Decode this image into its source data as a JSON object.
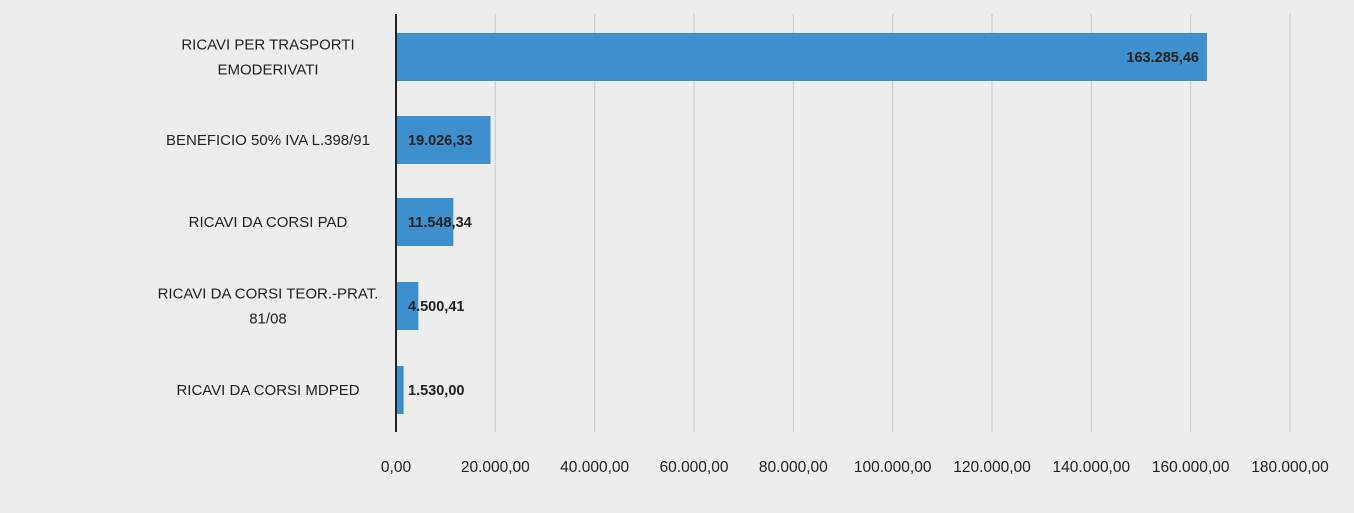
{
  "colors": {
    "background": "#e7e7e7",
    "plot_background": "#f4f4f4",
    "bar": "#3d8fce",
    "gridline": "#cfcfcf",
    "axis": "#222222",
    "text": "#222222"
  },
  "chart_data": {
    "type": "bar",
    "orientation": "horizontal",
    "title": "",
    "xlabel": "",
    "ylabel": "",
    "xlim": [
      0,
      180000
    ],
    "grid": true,
    "legend": "none",
    "x_ticks": [
      0,
      20000,
      40000,
      60000,
      80000,
      100000,
      120000,
      140000,
      160000,
      180000
    ],
    "x_tick_labels": [
      "0,00",
      "20.000,00",
      "40.000,00",
      "60.000,00",
      "80.000,00",
      "100.000,00",
      "120.000,00",
      "140.000,00",
      "160.000,00",
      "180.000,00"
    ],
    "categories": [
      [
        "RICAVI PER TRASPORTI",
        "EMODERIVATI"
      ],
      [
        "BENEFICIO 50% IVA L.398/91"
      ],
      [
        "RICAVI DA CORSI PAD"
      ],
      [
        "RICAVI DA CORSI TEOR.-PRAT.",
        "81/08"
      ],
      [
        "RICAVI DA CORSI MDPED"
      ]
    ],
    "values": [
      163285.46,
      19026.33,
      11548.34,
      4500.41,
      1530.0
    ],
    "data_labels": [
      "163.285,46",
      "19.026,33",
      "11.548,34",
      "4.500,41",
      "1.530,00"
    ]
  }
}
